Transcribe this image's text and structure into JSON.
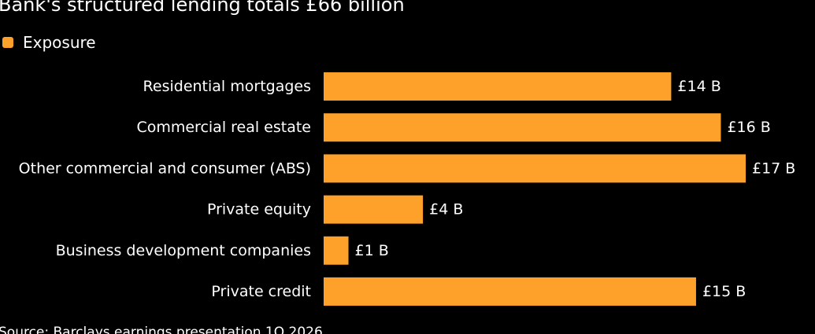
{
  "chart_data": {
    "type": "bar",
    "orientation": "horizontal",
    "title": "Bank's structured lending totals £66 billion",
    "legend": {
      "placement": "top-left",
      "items": [
        {
          "label": "Exposure",
          "color": "#fda12a"
        }
      ]
    },
    "categories": [
      "Residential mortgages",
      "Commercial real estate",
      "Other commercial and consumer (ABS)",
      "Private equity",
      "Business development companies",
      "Private credit"
    ],
    "series": [
      {
        "name": "Exposure",
        "values": [
          14,
          16,
          17,
          4,
          1,
          15
        ],
        "labels": [
          "£14 B",
          "£16 B",
          "£17 B",
          "£4 B",
          "£1 B",
          "£15 B"
        ]
      }
    ],
    "xlim": [
      0,
      17
    ],
    "grid": false,
    "source": "Source: Barclays earnings presentation 1Q 2026"
  },
  "colors": {
    "background": "#000000",
    "bar": "#fda12a",
    "text": "#ffffff"
  }
}
